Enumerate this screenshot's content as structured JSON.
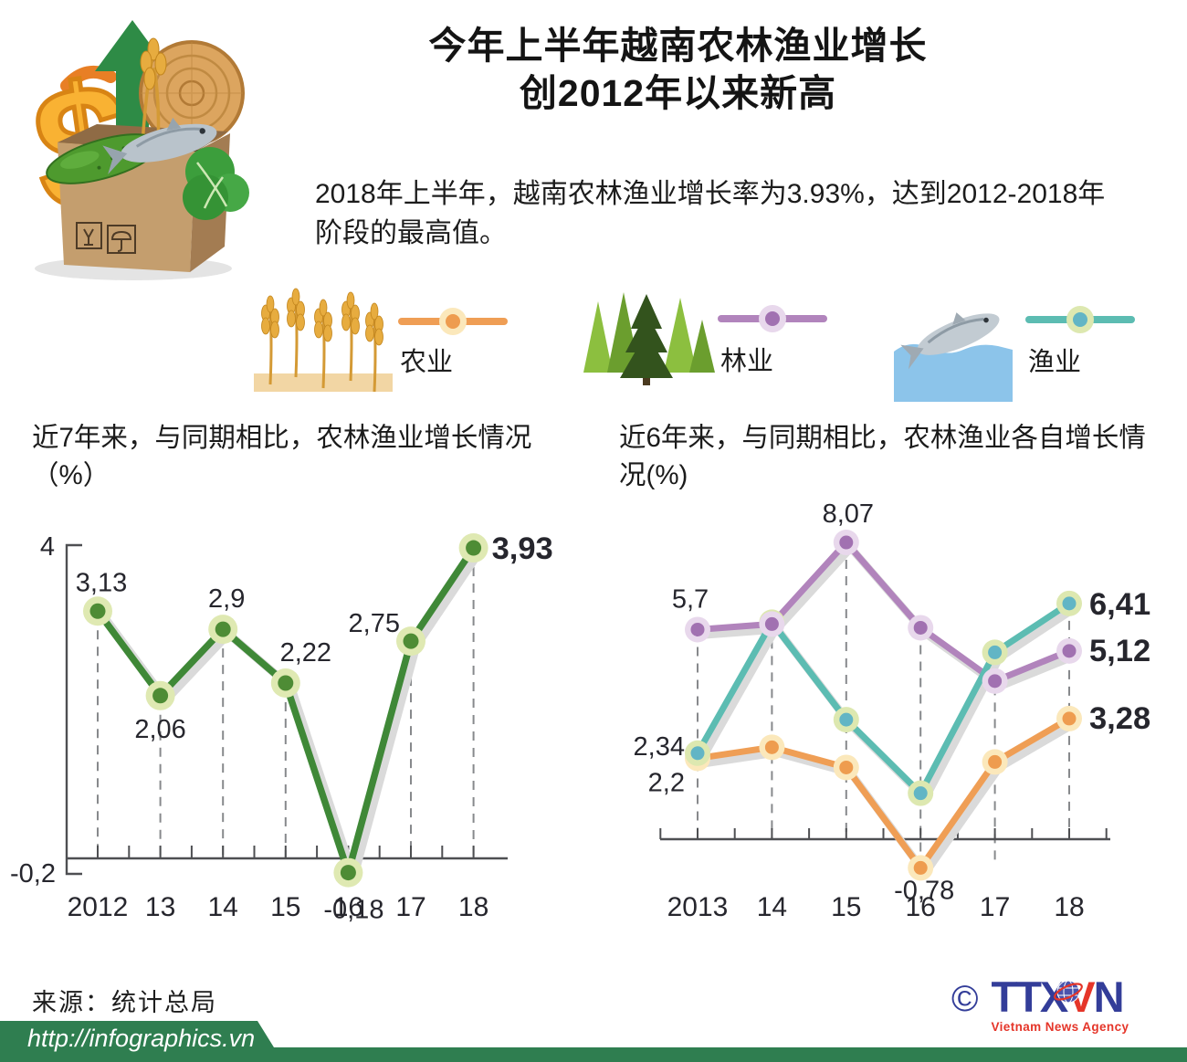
{
  "header": {
    "title_line1": "今年上半年越南农林渔业增长",
    "title_line2": "创2012年以来新高",
    "subtitle": "2018年上半年，越南农林渔业增长率为3.93%，达到2012-2018年阶段的最高值。"
  },
  "legend": {
    "items": [
      {
        "label": "农业",
        "icon": "wheat-icon",
        "line_color": "#EF9E55",
        "halo_color": "#FBE8BB",
        "dot_color": "#EE9C4F"
      },
      {
        "label": "林业",
        "icon": "forest-icon",
        "line_color": "#B184BC",
        "halo_color": "#E8D8EC",
        "dot_color": "#A171B1"
      },
      {
        "label": "渔业",
        "icon": "fish-icon",
        "line_color": "#5CBCB2",
        "halo_color": "#DDE8B0",
        "dot_color": "#62B5C5"
      }
    ]
  },
  "chart_data": [
    {
      "id": "overall-growth",
      "type": "line",
      "title": "近7年来，与同期相比，农林渔业增长情况（%）",
      "categories": [
        "2012",
        "13",
        "14",
        "15",
        "16",
        "17",
        "18"
      ],
      "series": [
        {
          "name": "农林渔业",
          "color": "#3F8837",
          "halo_color": "#DFE9B2",
          "dot_color": "#4E8C35",
          "values": [
            3.13,
            2.06,
            2.9,
            2.22,
            -0.18,
            2.75,
            3.93
          ],
          "point_labels": [
            "3,13",
            "2,06",
            "2,9",
            "2,22",
            "-0,18",
            "2,75",
            "3,93"
          ]
        }
      ],
      "ylim": [
        -0.2,
        4
      ],
      "y_axis_labels": {
        "top": "4",
        "bottom": "-0,2"
      },
      "grid": "dashed-vertical-guides",
      "legend_position": "none"
    },
    {
      "id": "sector-growth",
      "type": "line",
      "title": "近6年来，与同期相比，农林渔业各自增长情况(%)",
      "categories": [
        "2013",
        "14",
        "15",
        "16",
        "17",
        "18"
      ],
      "series": [
        {
          "name": "农业",
          "color": "#EF9E55",
          "halo_color": "#FBE8BB",
          "dot_color": "#EE9C4F",
          "values": [
            2.2,
            2.5,
            1.95,
            -0.78,
            2.1,
            3.28
          ],
          "point_labels": [
            "2,2",
            null,
            null,
            "-0,78",
            null,
            "3,28"
          ]
        },
        {
          "name": "林业",
          "color": "#B184BC",
          "halo_color": "#E8D8EC",
          "dot_color": "#A171B1",
          "values": [
            5.7,
            5.85,
            8.07,
            5.75,
            4.3,
            5.12
          ],
          "point_labels": [
            "5,7",
            null,
            "8,07",
            null,
            null,
            "5,12"
          ]
        },
        {
          "name": "渔业",
          "color": "#5CBCB2",
          "halo_color": "#DDE8B0",
          "dot_color": "#62B5C5",
          "values": [
            2.34,
            5.9,
            3.25,
            1.25,
            5.08,
            6.41
          ],
          "point_labels": [
            "2,34",
            null,
            null,
            null,
            null,
            "6,41"
          ]
        }
      ],
      "ylim": [
        -1,
        8.5
      ],
      "grid": "dashed-vertical-guides",
      "legend_position": "shared-top"
    }
  ],
  "footer": {
    "source": "来源：统计总局",
    "url": "http://infographics.vn",
    "band_color": "#2F7E50",
    "logo": {
      "copyright_symbol": "©",
      "ttx": "TTX",
      "v": "V",
      "n": "N",
      "agency": "Vietnam News Agency",
      "blue": "#333D99",
      "red": "#E53529"
    }
  }
}
